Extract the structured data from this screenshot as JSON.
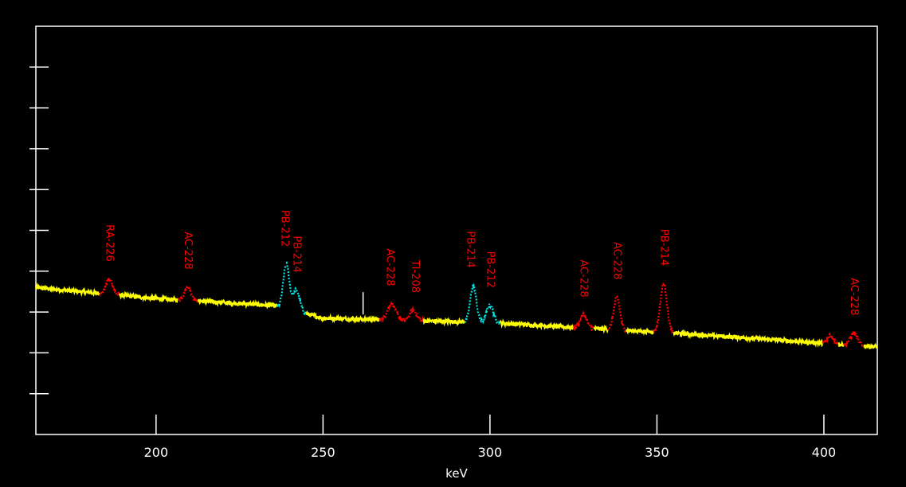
{
  "chart_data": {
    "type": "line",
    "title": "",
    "xlabel": "keV",
    "ylabel": "",
    "xlim": [
      164,
      416
    ],
    "ylim": [
      0,
      10
    ],
    "x_ticks": [
      200,
      250,
      300,
      350,
      400
    ],
    "y_ticks": [
      1,
      2,
      3,
      4,
      5,
      6,
      7,
      8,
      9
    ],
    "grid": false,
    "legend": "none",
    "colors": {
      "background": "#000000",
      "frame": "#ffffff",
      "spectrum": "#ffff00",
      "peak_red": "#ff0000",
      "peak_cyan": "#00e5e5",
      "cursor": "#ffffff"
    },
    "baseline": [
      {
        "x": 164,
        "y": 3.6
      },
      {
        "x": 200,
        "y": 3.33
      },
      {
        "x": 235,
        "y": 3.16
      },
      {
        "x": 250,
        "y": 2.85
      },
      {
        "x": 300,
        "y": 2.74
      },
      {
        "x": 352,
        "y": 2.5
      },
      {
        "x": 416,
        "y": 2.15
      }
    ],
    "cursor_x": 262,
    "peaks": [
      {
        "label": "RA-226",
        "center": 186,
        "height": 0.37,
        "width": 1.0,
        "color": "red",
        "label_x": 186
      },
      {
        "label": "AC-228",
        "center": 209.5,
        "height": 0.33,
        "width": 1.0,
        "color": "red",
        "label_x": 209.5
      },
      {
        "label": "PB-212",
        "center": 239,
        "height": 1.09,
        "width": 0.9,
        "color": "cyan",
        "label_x": 238.5
      },
      {
        "label": "PB-214",
        "center": 242,
        "height": 0.52,
        "width": 1.0,
        "color": "cyan",
        "label_x": 242
      },
      {
        "label": "AC-228",
        "center": 270.5,
        "height": 0.4,
        "width": 1.2,
        "color": "red",
        "label_x": 270
      },
      {
        "label": "TI-208",
        "center": 277,
        "height": 0.25,
        "width": 1.0,
        "color": "red",
        "label_x": 277.5
      },
      {
        "label": "PB-214",
        "center": 295,
        "height": 0.9,
        "width": 0.9,
        "color": "cyan",
        "label_x": 294
      },
      {
        "label": "PB-212",
        "center": 300,
        "height": 0.42,
        "width": 1.0,
        "color": "cyan",
        "label_x": 300
      },
      {
        "label": "AC-228",
        "center": 328,
        "height": 0.32,
        "width": 1.0,
        "color": "red",
        "label_x": 328
      },
      {
        "label": "AC-228",
        "center": 338,
        "height": 0.8,
        "width": 0.9,
        "color": "red",
        "label_x": 338
      },
      {
        "label": "PB-214",
        "center": 352,
        "height": 1.2,
        "width": 1.0,
        "color": "red",
        "label_x": 352
      },
      {
        "label": "",
        "center": 402,
        "height": 0.2,
        "width": 0.8,
        "color": "red",
        "label_x": 402
      },
      {
        "label": "AC-228",
        "center": 409,
        "height": 0.3,
        "width": 1.0,
        "color": "red",
        "label_x": 409
      }
    ]
  }
}
